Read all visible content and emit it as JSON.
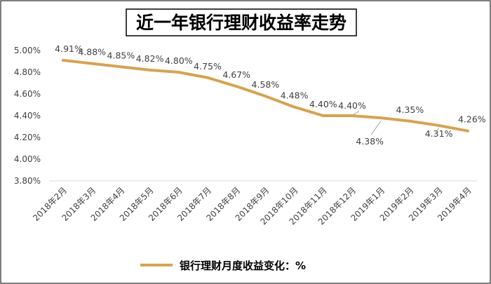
{
  "chart_data": {
    "type": "line",
    "title": "近一年银行理财收益率走势",
    "categories": [
      "2018年2月",
      "2018年3月",
      "2018年4月",
      "2018年5月",
      "2018年6月",
      "2018年7月",
      "2018年8月",
      "2018年9月",
      "2018年10月",
      "2018年11月",
      "2018年12月",
      "2019年1月",
      "2019年2月",
      "2019年3月",
      "2019年4月"
    ],
    "series": [
      {
        "name": "银行理财月度收益变化：%",
        "values": [
          4.91,
          4.88,
          4.85,
          4.82,
          4.8,
          4.75,
          4.67,
          4.58,
          4.48,
          4.4,
          4.4,
          4.38,
          4.35,
          4.31,
          4.26
        ],
        "value_labels": [
          "4.91%",
          "4.88%",
          "4.85%",
          "4.82%",
          "4.80%",
          "4.75%",
          "4.67%",
          "4.58%",
          "4.48%",
          "4.40%",
          "4.40%",
          "4.38%",
          "4.35%",
          "4.31%",
          "4.26%"
        ]
      }
    ],
    "y_ticks": [
      3.8,
      4.0,
      4.2,
      4.4,
      4.6,
      4.8,
      5.0
    ],
    "y_tick_labels": [
      "3.80%",
      "4.00%",
      "4.20%",
      "4.40%",
      "4.60%",
      "4.80%",
      "5.00%"
    ],
    "ylim": [
      3.8,
      5.0
    ],
    "xlabel": "",
    "ylabel": "",
    "grid": false,
    "legend_position": "bottom",
    "colors": {
      "line": "#D8A34C",
      "leader": "#A6A6A6",
      "border": "#000000",
      "text": "#404040"
    }
  }
}
